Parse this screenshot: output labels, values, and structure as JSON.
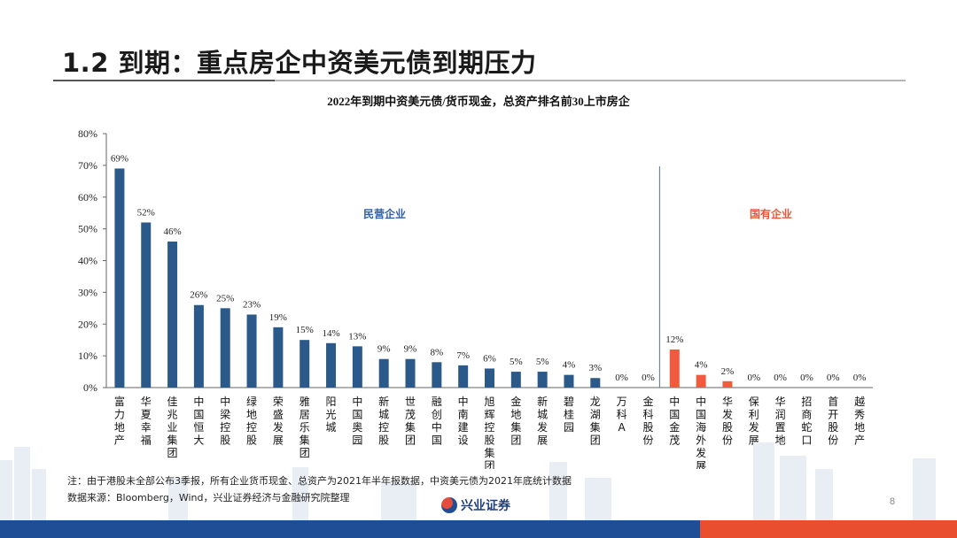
{
  "slide": {
    "title": "1.2 到期：重点房企中资美元债到期压力",
    "page_number": "8",
    "note": "注：由于港股未全部公布3季报，所有企业货币现金、总资产为2021年半年报数据，中资美元债为2021年底统计数据",
    "source": "数据来源：Bloomberg，Wind，兴业证券经济与金融研究院整理",
    "logo_text": "兴业证券"
  },
  "colors": {
    "private": "#2b5a8a",
    "state": "#ef5a40",
    "private_label": "#2e5ea8",
    "state_label": "#e8563a",
    "footer_blue": "#1f4e96",
    "footer_red": "#e94e2e"
  },
  "chart_data": {
    "type": "bar",
    "title": "2022年到期中资美元债/货币现金，总资产排名前30上市房企",
    "ylim": [
      0,
      80
    ],
    "yticks": [
      "0%",
      "10%",
      "20%",
      "30%",
      "40%",
      "50%",
      "60%",
      "70%",
      "80%"
    ],
    "grid": false,
    "group_labels": {
      "private": "民营企业",
      "state": "国有企业"
    },
    "categories": [
      "富力地产",
      "华夏幸福",
      "佳兆业集团",
      "中国恒大",
      "中梁控股",
      "绿地控股",
      "荣盛发展",
      "雅居乐集团",
      "阳光城",
      "中国奥园",
      "新城控股",
      "世茂集团",
      "融创中国",
      "中南建设",
      "旭辉控股集团",
      "金地集团",
      "新城发展",
      "碧桂园",
      "龙湖集团",
      "万科A",
      "金科股份",
      "中国金茂",
      "中国海外发展",
      "华发股份",
      "保利发展",
      "华润置地",
      "招商蛇口",
      "首开股份",
      "越秀地产"
    ],
    "values": [
      69,
      52,
      46,
      26,
      25,
      23,
      19,
      15,
      14,
      13,
      9,
      9,
      8,
      7,
      6,
      5,
      5,
      4,
      3,
      0,
      0,
      12,
      4,
      2,
      0,
      0,
      0,
      0,
      0
    ],
    "value_labels": [
      "69%",
      "52%",
      "46%",
      "26%",
      "25%",
      "23%",
      "19%",
      "15%",
      "14%",
      "13%",
      "9%",
      "9%",
      "8%",
      "7%",
      "6%",
      "5%",
      "5%",
      "4%",
      "3%",
      "0%",
      "0%",
      "12%",
      "4%",
      "2%",
      "0%",
      "0%",
      "0%",
      "0%",
      "0%"
    ],
    "ownership": [
      "private",
      "private",
      "private",
      "private",
      "private",
      "private",
      "private",
      "private",
      "private",
      "private",
      "private",
      "private",
      "private",
      "private",
      "private",
      "private",
      "private",
      "private",
      "private",
      "private",
      "private",
      "state",
      "state",
      "state",
      "state",
      "state",
      "state",
      "state",
      "state"
    ]
  }
}
